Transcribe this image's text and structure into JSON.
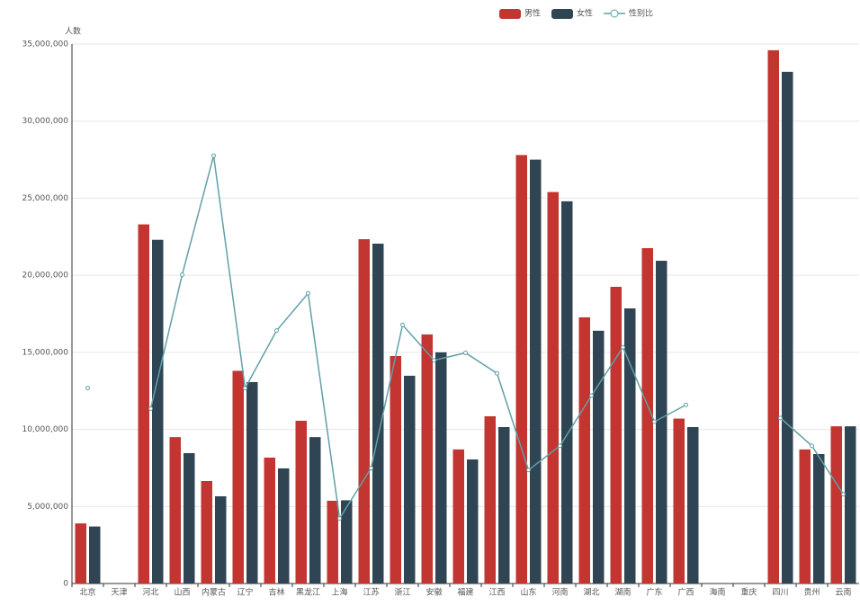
{
  "chart_data": {
    "type": "bar",
    "y_axis_label": "人数",
    "categories": [
      "北京",
      "天津",
      "河北",
      "山西",
      "内蒙古",
      "辽宁",
      "吉林",
      "黑龙江",
      "上海",
      "江苏",
      "浙江",
      "安徽",
      "福建",
      "江西",
      "山东",
      "河南",
      "湖北",
      "湖南",
      "广东",
      "广西",
      "海南",
      "重庆",
      "四川",
      "贵州",
      "云南"
    ],
    "series": [
      {
        "name": "男性",
        "color": "#c23531",
        "type": "bar",
        "values": [
          3900000,
          null,
          23300000,
          9500000,
          6650000,
          13800000,
          8170000,
          10560000,
          5370000,
          22340000,
          14760000,
          16160000,
          8700000,
          10850000,
          27800000,
          25400000,
          17270000,
          19250000,
          21760000,
          10700000,
          null,
          null,
          34600000,
          8700000,
          10200000
        ]
      },
      {
        "name": "女性",
        "color": "#2f4554",
        "type": "bar",
        "values": [
          3700000,
          null,
          22300000,
          8460000,
          5660000,
          13070000,
          7470000,
          9500000,
          5400000,
          22050000,
          13480000,
          15000000,
          8050000,
          10150000,
          27500000,
          24800000,
          16400000,
          17850000,
          20940000,
          10150000,
          null,
          null,
          33200000,
          8400000,
          10200000
        ]
      },
      {
        "name": "性别比",
        "color": "#61a0a8",
        "type": "line",
        "axis": "y2",
        "values": [
          105.0,
          null,
          103.9,
          111.1,
          117.5,
          105.0,
          108.1,
          110.1,
          98.0,
          100.7,
          108.4,
          106.5,
          106.9,
          105.8,
          100.6,
          101.9,
          104.6,
          107.2,
          103.2,
          104.1,
          null,
          null,
          103.4,
          101.9,
          99.3
        ]
      }
    ],
    "ylim": [
      0,
      35000000
    ],
    "yticks": [
      {
        "value": 0,
        "label": "0"
      },
      {
        "value": 5000000,
        "label": "5,000,000"
      },
      {
        "value": 10000000,
        "label": "10,000,000"
      },
      {
        "value": 15000000,
        "label": "15,000,000"
      },
      {
        "value": 20000000,
        "label": "20,000,000"
      },
      {
        "value": 25000000,
        "label": "25,000,000"
      },
      {
        "value": 30000000,
        "label": "30,000,000"
      },
      {
        "value": 35000000,
        "label": "35,000,000"
      }
    ],
    "y2lim": [
      94.5,
      123.5
    ],
    "grid": true
  }
}
